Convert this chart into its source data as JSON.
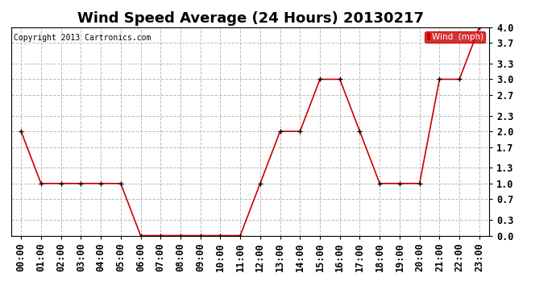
{
  "title": "Wind Speed Average (24 Hours) 20130217",
  "copyright": "Copyright 2013 Cartronics.com",
  "legend_label": "Wind  (mph)",
  "hours": [
    "00:00",
    "01:00",
    "02:00",
    "03:00",
    "04:00",
    "05:00",
    "06:00",
    "07:00",
    "08:00",
    "09:00",
    "10:00",
    "11:00",
    "12:00",
    "13:00",
    "14:00",
    "15:00",
    "16:00",
    "17:00",
    "18:00",
    "19:00",
    "20:00",
    "21:00",
    "22:00",
    "23:00"
  ],
  "wind_values": [
    2.0,
    1.0,
    1.0,
    1.0,
    1.0,
    1.0,
    0.0,
    0.0,
    0.0,
    0.0,
    0.0,
    0.0,
    1.0,
    2.0,
    2.0,
    3.0,
    3.0,
    2.0,
    1.0,
    1.0,
    1.0,
    3.0,
    3.0,
    4.0
  ],
  "line_color": "#cc0000",
  "marker_color": "#000000",
  "legend_bg": "#cc0000",
  "legend_text_color": "#ffffff",
  "yticks": [
    0.0,
    0.3,
    0.7,
    1.0,
    1.3,
    1.7,
    2.0,
    2.3,
    2.7,
    3.0,
    3.3,
    3.7,
    4.0
  ],
  "ylim": [
    0.0,
    4.0
  ],
  "xlim": [
    -0.5,
    23.5
  ],
  "bg_color": "#ffffff",
  "grid_color": "#bbbbbb",
  "title_fontsize": 13,
  "copyright_fontsize": 7,
  "tick_fontsize": 8.5
}
